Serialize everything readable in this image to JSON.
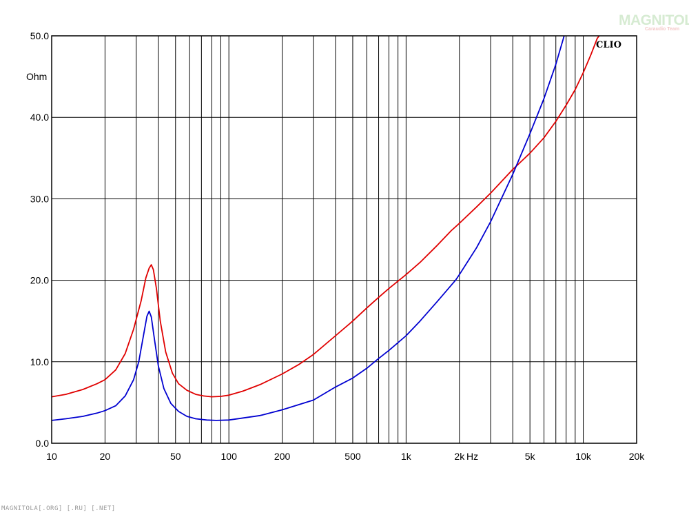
{
  "chart_data": {
    "type": "line",
    "x_scale": "log",
    "xlim": [
      10,
      20000
    ],
    "ylim": [
      0,
      50
    ],
    "x_unit": "Hz",
    "y_unit": "Ohm",
    "brand": "CLIO",
    "grid": true,
    "x_ticks": [
      {
        "value": 10,
        "label": "10"
      },
      {
        "value": 20,
        "label": "20"
      },
      {
        "value": 50,
        "label": "50"
      },
      {
        "value": 100,
        "label": "100"
      },
      {
        "value": 200,
        "label": "200"
      },
      {
        "value": 500,
        "label": "500"
      },
      {
        "value": 1000,
        "label": "1k"
      },
      {
        "value": 2000,
        "label": "2k"
      },
      {
        "value": 5000,
        "label": "5k"
      },
      {
        "value": 10000,
        "label": "10k"
      },
      {
        "value": 20000,
        "label": "20k"
      }
    ],
    "y_ticks": [
      {
        "value": 0,
        "label": "0.0"
      },
      {
        "value": 10,
        "label": "10.0"
      },
      {
        "value": 20,
        "label": "20.0"
      },
      {
        "value": 30,
        "label": "30.0"
      },
      {
        "value": 40,
        "label": "40.0"
      },
      {
        "value": 50,
        "label": "50.0"
      }
    ],
    "series": [
      {
        "color": "#e00000",
        "points": [
          [
            10,
            5.7
          ],
          [
            12,
            6.0
          ],
          [
            15,
            6.6
          ],
          [
            18,
            7.3
          ],
          [
            20,
            7.8
          ],
          [
            23,
            9.0
          ],
          [
            26,
            11.0
          ],
          [
            29,
            14.0
          ],
          [
            32,
            17.5
          ],
          [
            34,
            20.3
          ],
          [
            35.5,
            21.5
          ],
          [
            36.5,
            21.9
          ],
          [
            37.5,
            21.3
          ],
          [
            39,
            19.0
          ],
          [
            41,
            15.0
          ],
          [
            44,
            11.2
          ],
          [
            48,
            8.6
          ],
          [
            52,
            7.3
          ],
          [
            58,
            6.5
          ],
          [
            65,
            6.0
          ],
          [
            72,
            5.8
          ],
          [
            80,
            5.7
          ],
          [
            90,
            5.75
          ],
          [
            100,
            5.9
          ],
          [
            120,
            6.4
          ],
          [
            150,
            7.2
          ],
          [
            200,
            8.5
          ],
          [
            250,
            9.7
          ],
          [
            300,
            10.9
          ],
          [
            400,
            13.2
          ],
          [
            500,
            15.0
          ],
          [
            600,
            16.6
          ],
          [
            700,
            17.9
          ],
          [
            800,
            19.0
          ],
          [
            1000,
            20.7
          ],
          [
            1200,
            22.2
          ],
          [
            1500,
            24.3
          ],
          [
            1800,
            26.1
          ],
          [
            2000,
            27.0
          ],
          [
            2500,
            29.0
          ],
          [
            3000,
            30.7
          ],
          [
            4000,
            33.6
          ],
          [
            5000,
            35.6
          ],
          [
            6000,
            37.5
          ],
          [
            7000,
            39.5
          ],
          [
            8000,
            41.5
          ],
          [
            9000,
            43.4
          ],
          [
            10000,
            45.5
          ],
          [
            11000,
            47.6
          ],
          [
            12000,
            49.7
          ],
          [
            12300,
            50.0
          ]
        ]
      },
      {
        "color": "#0000d0",
        "points": [
          [
            10,
            2.8
          ],
          [
            12,
            3.0
          ],
          [
            15,
            3.3
          ],
          [
            18,
            3.7
          ],
          [
            20,
            4.0
          ],
          [
            23,
            4.6
          ],
          [
            26,
            5.8
          ],
          [
            29,
            7.8
          ],
          [
            31,
            10.0
          ],
          [
            33,
            13.3
          ],
          [
            34.5,
            15.6
          ],
          [
            35.5,
            16.2
          ],
          [
            36.5,
            15.5
          ],
          [
            38,
            12.8
          ],
          [
            40,
            9.5
          ],
          [
            43,
            6.7
          ],
          [
            47,
            4.9
          ],
          [
            52,
            3.9
          ],
          [
            58,
            3.3
          ],
          [
            65,
            3.0
          ],
          [
            75,
            2.85
          ],
          [
            85,
            2.8
          ],
          [
            100,
            2.85
          ],
          [
            150,
            3.4
          ],
          [
            200,
            4.1
          ],
          [
            300,
            5.3
          ],
          [
            400,
            6.9
          ],
          [
            500,
            8.0
          ],
          [
            600,
            9.2
          ],
          [
            700,
            10.4
          ],
          [
            800,
            11.4
          ],
          [
            1000,
            13.2
          ],
          [
            1200,
            15.0
          ],
          [
            1500,
            17.4
          ],
          [
            1900,
            20.0
          ],
          [
            2000,
            20.7
          ],
          [
            2500,
            24.0
          ],
          [
            3000,
            27.2
          ],
          [
            4000,
            33.0
          ],
          [
            5000,
            38.0
          ],
          [
            6000,
            42.3
          ],
          [
            7000,
            46.5
          ],
          [
            7800,
            50.0
          ]
        ]
      }
    ]
  },
  "watermark": {
    "logo_text": "MAGNITOLA",
    "logo_subtext": "Caraudio Team",
    "footer_text": "MAGNITOLA[.ORG] [.RU] [.NET]"
  }
}
